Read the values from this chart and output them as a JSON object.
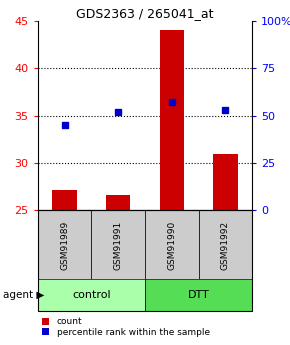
{
  "title": "GDS2363 / 265041_at",
  "samples": [
    "GSM91989",
    "GSM91991",
    "GSM91990",
    "GSM91992"
  ],
  "counts": [
    27.2,
    26.6,
    44.0,
    31.0
  ],
  "percentiles": [
    45,
    52,
    57,
    53
  ],
  "ylim_left": [
    25,
    45
  ],
  "ylim_right": [
    0,
    100
  ],
  "yticks_left": [
    25,
    30,
    35,
    40,
    45
  ],
  "yticks_right": [
    0,
    25,
    50,
    75,
    100
  ],
  "ytick_labels_right": [
    "0",
    "25",
    "50",
    "75",
    "100%"
  ],
  "groups": [
    {
      "label": "control",
      "samples": [
        0,
        1
      ],
      "color": "#aaffaa"
    },
    {
      "label": "DTT",
      "samples": [
        2,
        3
      ],
      "color": "#55dd55"
    }
  ],
  "bar_color": "#cc0000",
  "dot_color": "#0000cc",
  "bar_width": 0.45,
  "agent_label": "agent",
  "legend_count_label": "count",
  "legend_pct_label": "percentile rank within the sample",
  "sample_box_color": "#cccccc",
  "gridline_color": "#000000"
}
